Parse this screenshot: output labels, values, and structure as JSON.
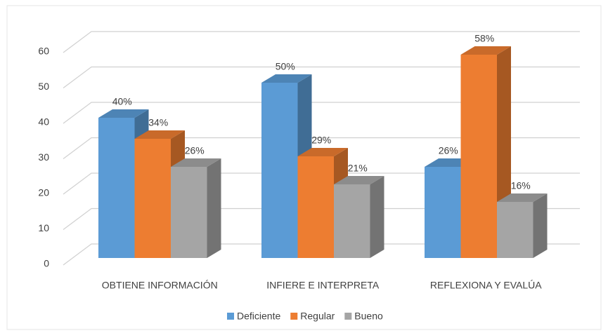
{
  "chart_data": {
    "type": "bar3d",
    "categories": [
      "OBTIENE INFORMACIÓN",
      "INFIERE E INTERPRETA",
      "REFLEXIONA Y EVALÚA"
    ],
    "series": [
      {
        "name": "Deficiente",
        "color": "#5b9bd5",
        "values": [
          40,
          50,
          26
        ],
        "value_labels": [
          "40%",
          "50%",
          "26%"
        ]
      },
      {
        "name": "Regular",
        "color": "#ed7d31",
        "values": [
          34,
          29,
          58
        ],
        "value_labels": [
          "34%",
          "29%",
          "58%"
        ]
      },
      {
        "name": "Bueno",
        "color": "#a5a5a5",
        "values": [
          26,
          21,
          16
        ],
        "value_labels": [
          "26%",
          "21%",
          "16%"
        ]
      }
    ],
    "ylim": [
      0,
      60
    ],
    "yticks": [
      0,
      10,
      20,
      30,
      40,
      50,
      60
    ],
    "grid": true,
    "legend": "bottom"
  }
}
